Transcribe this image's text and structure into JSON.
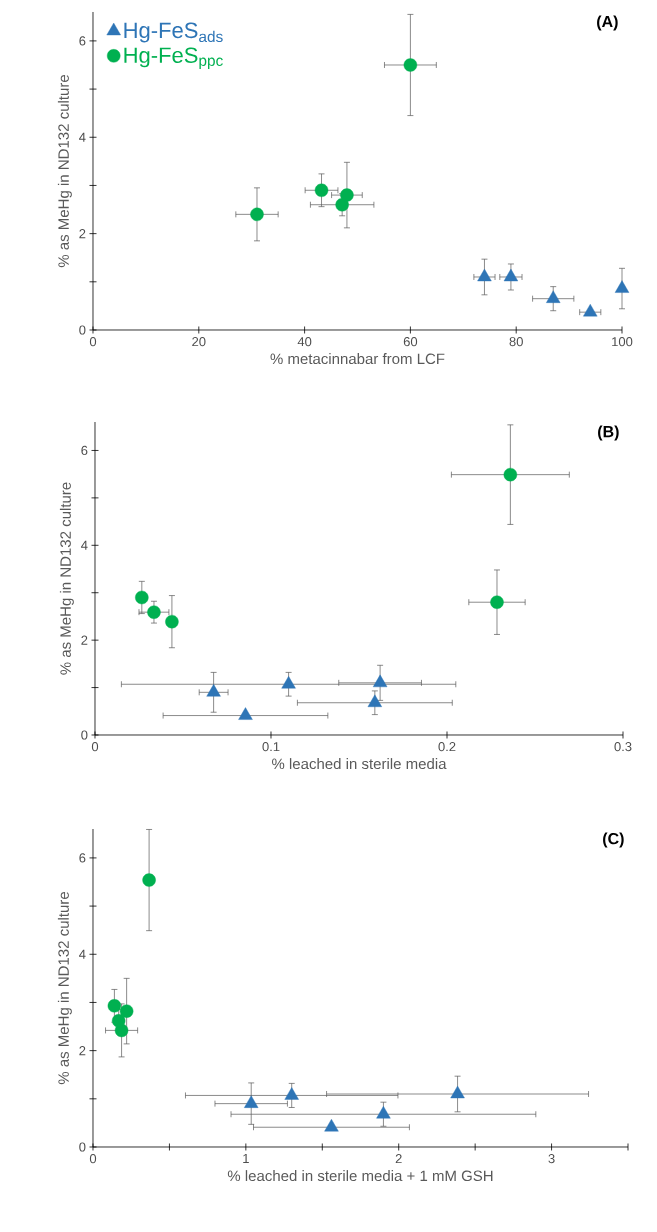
{
  "chart_data": [
    {
      "type": "scatter",
      "xlabel": "% metacinnabar from LCF",
      "ylabel": "% as MeHg in ND132 culture",
      "annotations": [
        "(A)"
      ],
      "legend": "top left",
      "xlim": [
        0,
        100
      ],
      "xticks": [
        0,
        20,
        40,
        60,
        80,
        100
      ],
      "ylim": [
        0,
        6.6
      ],
      "yticks": [
        0,
        {
          "value": 1,
          "label": null
        },
        2,
        {
          "value": 3,
          "label": null
        },
        4,
        {
          "value": 5,
          "label": null
        },
        6
      ],
      "series": [
        {
          "name": "Hg-FeS$_{ads}$",
          "color": "#2e75b6",
          "marker": "triangle",
          "x": [
            74,
            79,
            87,
            94,
            100
          ],
          "values": [
            1.1,
            1.1,
            0.65,
            0.37,
            0.86
          ],
          "errors": [
            0.37,
            0.27,
            0.25,
            null,
            0.42
          ],
          "xerrors": [
            2,
            2.1,
            3.9,
            2,
            null
          ]
        },
        {
          "name": "Hg-FeS$_{ppc}$",
          "color": "#00b050",
          "marker": "circle",
          "x": [
            31,
            43.2,
            47.1,
            48,
            60
          ],
          "values": [
            2.4,
            2.9,
            2.6,
            2.8,
            5.5
          ],
          "errors": [
            0.55,
            0.34,
            0.23,
            0.68,
            1.05
          ],
          "xerrors": [
            4,
            3.1,
            6,
            2.9,
            4.9
          ]
        }
      ]
    },
    {
      "type": "scatter",
      "xlabel": "% leached in sterile media",
      "ylabel": "% as MeHg in ND132 culture",
      "annotations": [
        "(B)"
      ],
      "xlim": [
        0,
        0.3
      ],
      "xticks": [
        0,
        0.1,
        0.2,
        0.3
      ],
      "ylim": [
        0,
        6.6
      ],
      "yticks": [
        0,
        {
          "value": 1,
          "label": null
        },
        2,
        {
          "value": 3,
          "label": null
        },
        4,
        {
          "value": 5,
          "label": null
        },
        6
      ],
      "series": [
        {
          "color": "#2e75b6",
          "marker": "triangle",
          "x": [
            0.162,
            0.11,
            0.159,
            0.0855,
            0.0674
          ],
          "values": [
            1.1,
            1.07,
            0.68,
            0.41,
            0.9
          ],
          "errors": [
            0.37,
            0.25,
            0.25,
            null,
            0.42
          ],
          "xerrors": [
            0.0235,
            0.095,
            0.044,
            0.0468,
            0.0082
          ]
        },
        {
          "color": "#00b050",
          "marker": "circle",
          "x": [
            0.0437,
            0.0266,
            0.0335,
            0.2284,
            0.236
          ],
          "values": [
            2.39,
            2.9,
            2.59,
            2.8,
            5.49
          ],
          "errors": [
            0.55,
            0.34,
            0.23,
            0.68,
            1.05
          ],
          "xerrors": [
            null,
            null,
            0.0085,
            0.016,
            0.0335
          ]
        }
      ]
    },
    {
      "type": "scatter",
      "xlabel": "% leached in sterile media + 1 mM GSH",
      "ylabel": "% as MeHg in ND132 culture",
      "annotations": [
        "(C)"
      ],
      "xlim": [
        0,
        3.5
      ],
      "xticks": [
        0,
        {
          "value": 0.5,
          "label": null
        },
        1,
        {
          "value": 1.5,
          "label": null
        },
        2,
        {
          "value": 2.5,
          "label": null
        },
        3,
        {
          "value": 3.5,
          "label": null
        }
      ],
      "ylim": [
        0,
        6.6
      ],
      "yticks": [
        0,
        {
          "value": 1,
          "label": null
        },
        2,
        {
          "value": 3,
          "label": null
        },
        4,
        {
          "value": 5,
          "label": null
        },
        6
      ],
      "series": [
        {
          "color": "#2e75b6",
          "marker": "triangle",
          "x": [
            2.385,
            1.3,
            1.9,
            1.56,
            1.035
          ],
          "values": [
            1.1,
            1.07,
            0.68,
            0.41,
            0.9
          ],
          "errors": [
            0.37,
            0.25,
            0.25,
            null,
            0.43
          ],
          "xerrors": [
            0.857,
            0.695,
            0.997,
            0.51,
            0.237
          ]
        },
        {
          "color": "#00b050",
          "marker": "circle",
          "x": [
            0.187,
            0.14,
            0.168,
            0.22,
            0.367
          ],
          "values": [
            2.42,
            2.93,
            2.62,
            2.82,
            5.54
          ],
          "errors": [
            0.55,
            0.34,
            0.23,
            0.68,
            1.05
          ],
          "xerrors": [
            0.105,
            null,
            null,
            null,
            null
          ]
        }
      ]
    }
  ]
}
